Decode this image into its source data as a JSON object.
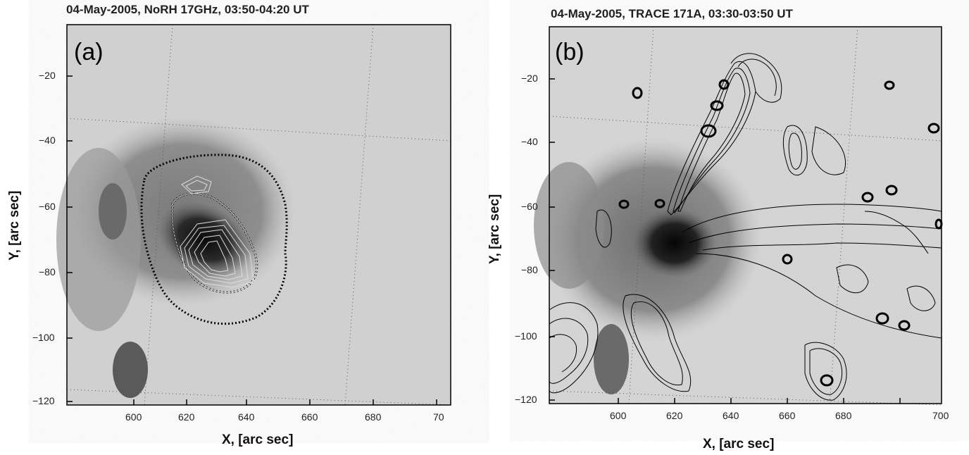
{
  "panels": [
    {
      "title": "04-May-2005, NoRH 17GHz, 03:50-04:20 UT",
      "label": "(a)",
      "xlabel": "X, [arc sec]",
      "ylabel": "Y, [arc sec]",
      "xticks": [
        "600",
        "620",
        "640",
        "660",
        "680",
        "70"
      ],
      "yticks": [
        "−20",
        "−40",
        "−60",
        "−80",
        "−100",
        "−120"
      ]
    },
    {
      "title": "04-May-2005, TRACE 171A, 03:30-03:50 UT",
      "label": "(b)",
      "xlabel": "X, [arc sec]",
      "ylabel": "Y, [arc sec]",
      "xticks": [
        "600",
        "620",
        "640",
        "660",
        "680",
        "700"
      ],
      "yticks": [
        "−20",
        "−40",
        "−60",
        "−80",
        "−100",
        "−120"
      ]
    }
  ]
}
